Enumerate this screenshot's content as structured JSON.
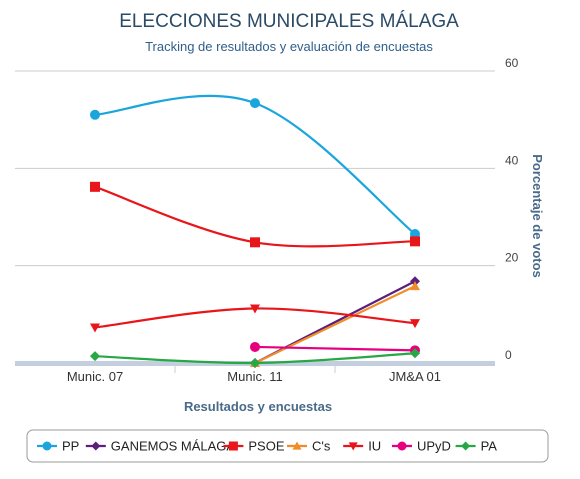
{
  "chart_data": {
    "type": "line",
    "title": "ELECCIONES MUNICIPALES MÁLAGA",
    "subtitle": "Tracking de resultados y evaluación de encuestas",
    "xlabel": "Resultados y encuestas",
    "ylabel": "Porcentaje de votos",
    "categories": [
      "Munic. 07",
      "Munic. 11",
      "JM&A 01"
    ],
    "ylim": [
      0,
      60
    ],
    "yticks": [
      0,
      20,
      40,
      60
    ],
    "grid": true,
    "legend_position": "bottom",
    "series": [
      {
        "name": "PP",
        "color": "#1aa6dd",
        "marker": "circle",
        "values": [
          51.0,
          53.4,
          26.5
        ]
      },
      {
        "name": "GANEMOS MÁLAGA",
        "color": "#5c1f7a",
        "marker": "diamond",
        "values": [
          null,
          0.0,
          16.8
        ]
      },
      {
        "name": "PSOE",
        "color": "#e8161b",
        "marker": "square",
        "values": [
          36.2,
          24.8,
          25.0
        ]
      },
      {
        "name": "C's",
        "color": "#f28c28",
        "marker": "triangle",
        "values": [
          null,
          0.0,
          15.8
        ]
      },
      {
        "name": "IU",
        "color": "#e8161b",
        "marker": "triangle-down",
        "values": [
          7.3,
          11.2,
          8.2
        ]
      },
      {
        "name": "UPyD",
        "color": "#e6007e",
        "marker": "circle",
        "values": [
          null,
          3.3,
          2.6
        ]
      },
      {
        "name": "PA",
        "color": "#27a844",
        "marker": "diamond",
        "values": [
          1.4,
          0.0,
          2.0
        ]
      }
    ]
  }
}
